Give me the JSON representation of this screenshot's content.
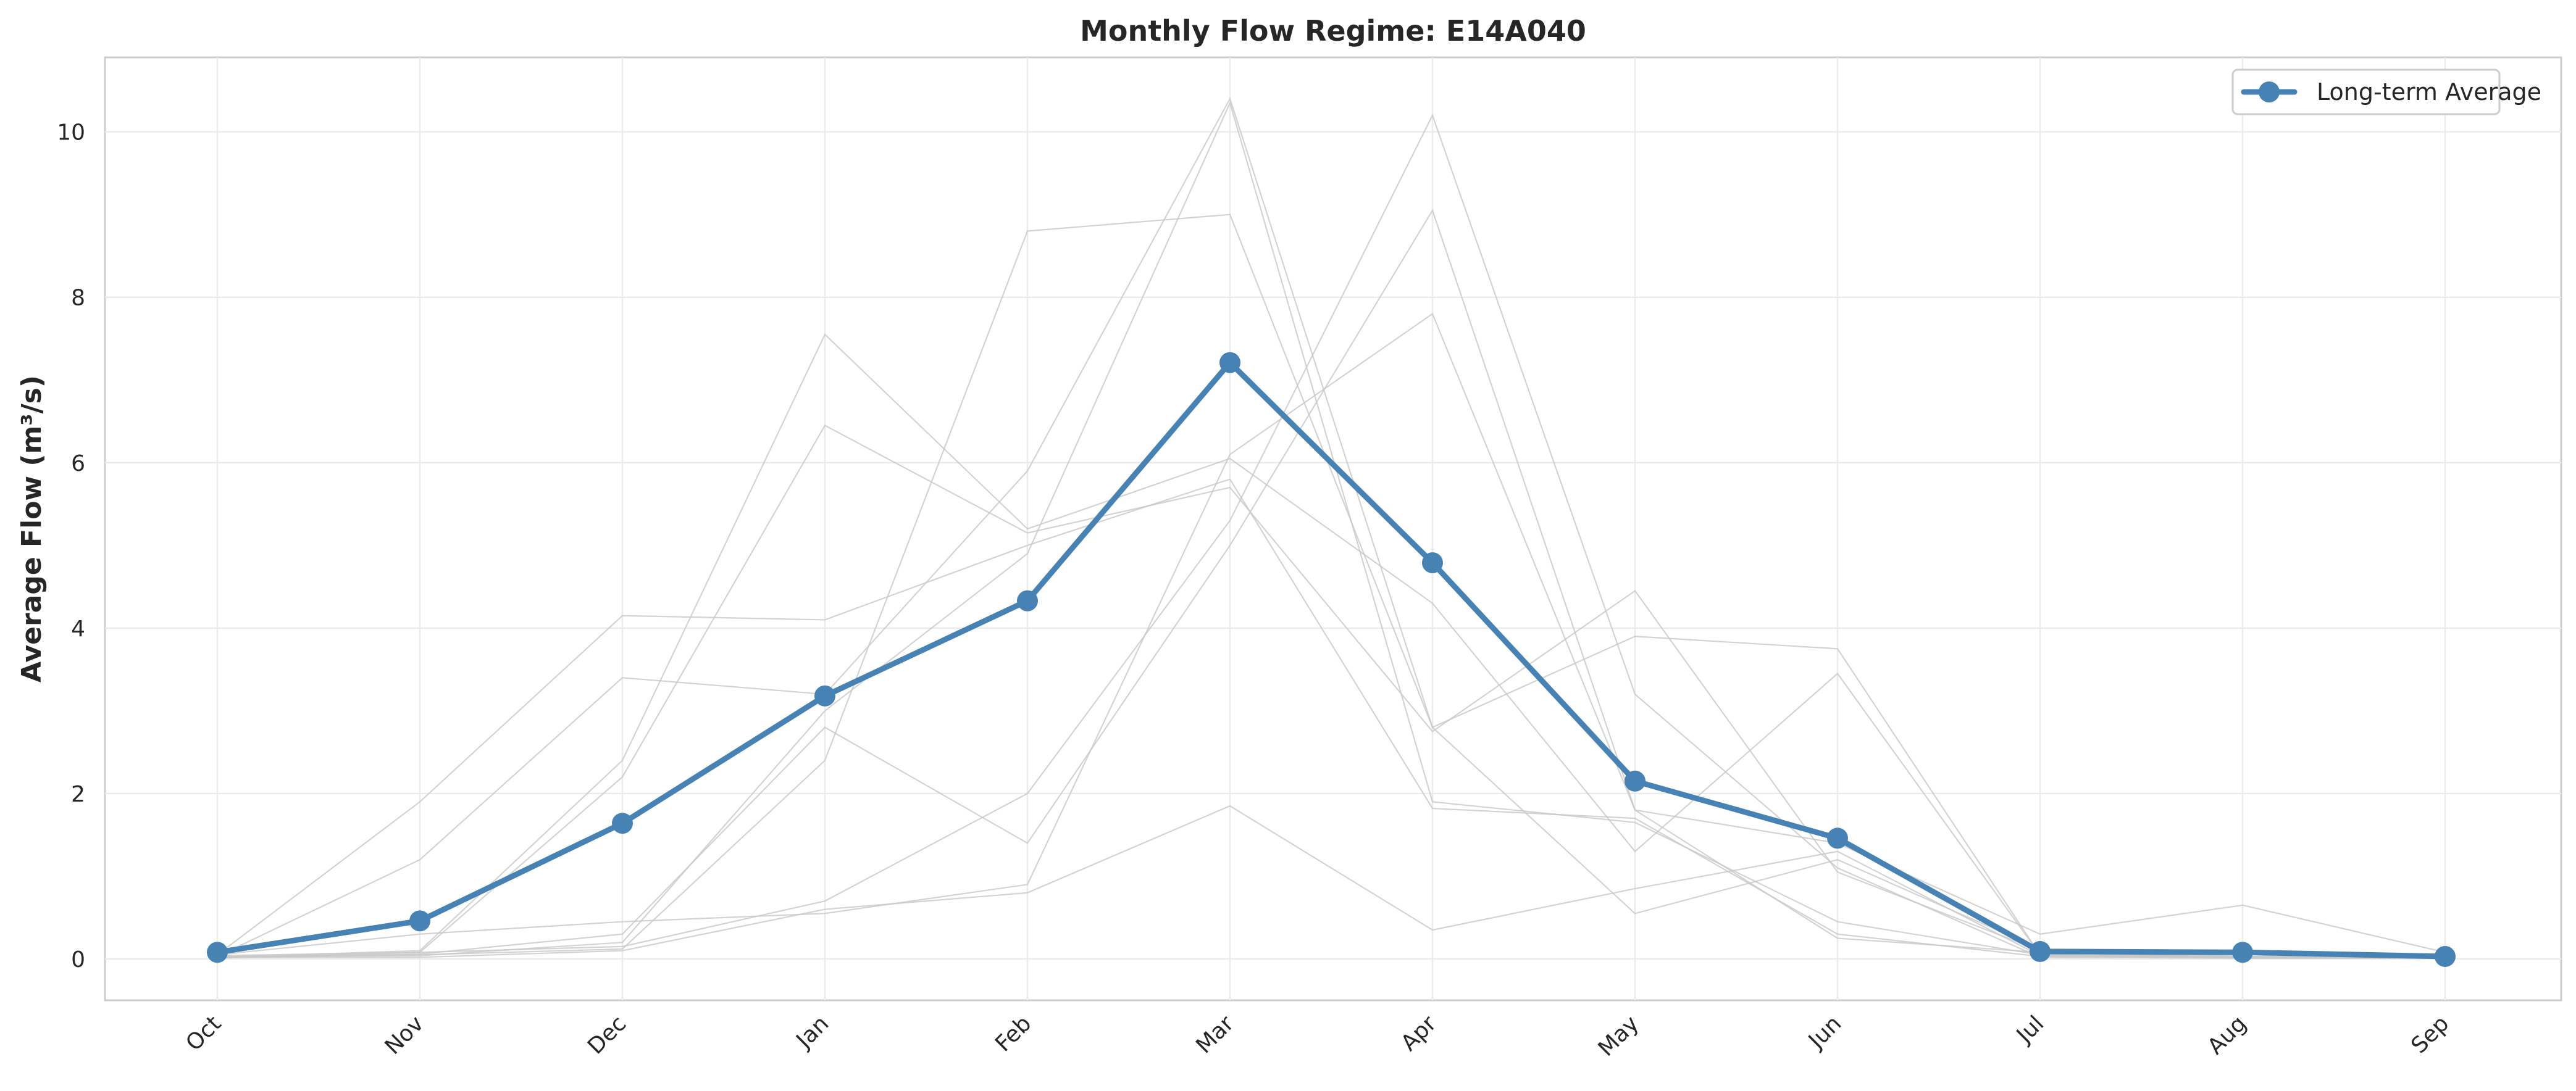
{
  "chart_data": {
    "type": "line",
    "title": "Monthly Flow Regime: E14A040",
    "xlabel": "",
    "ylabel": "Average Flow (m³/s)",
    "categories": [
      "Oct",
      "Nov",
      "Dec",
      "Jan",
      "Feb",
      "Mar",
      "Apr",
      "May",
      "Jun",
      "Jul",
      "Aug",
      "Sep"
    ],
    "ylim": [
      -0.5,
      10.9
    ],
    "yticks": [
      0,
      2,
      4,
      6,
      8,
      10
    ],
    "grid": true,
    "legend_position": "top-right",
    "series": [
      {
        "name": "Long-term Average",
        "color": "#4682b4",
        "values": [
          0.08,
          0.46,
          1.64,
          3.18,
          4.33,
          7.21,
          4.79,
          2.15,
          1.46,
          0.09,
          0.08,
          0.03
        ]
      }
    ],
    "background_lines": {
      "color": "#c8c8c8",
      "values": [
        [
          0.05,
          1.9,
          4.15,
          4.1,
          5.0,
          5.8,
          1.82,
          1.7,
          0.3,
          0.03,
          0.02,
          0.02
        ],
        [
          0.03,
          1.2,
          3.4,
          3.2,
          5.9,
          10.4,
          2.8,
          3.9,
          3.75,
          0.05,
          0.02,
          0.01
        ],
        [
          0.02,
          0.1,
          2.4,
          7.55,
          5.2,
          6.05,
          4.3,
          1.3,
          3.45,
          0.05,
          0.01,
          0.01
        ],
        [
          0.04,
          0.08,
          2.2,
          6.45,
          5.15,
          5.7,
          2.75,
          4.45,
          1.05,
          0.1,
          0.01,
          0.02
        ],
        [
          0.02,
          0.02,
          0.1,
          0.6,
          0.8,
          1.85,
          0.35,
          0.85,
          1.3,
          0.04,
          0.01,
          0.01
        ],
        [
          0.01,
          0.08,
          0.15,
          0.7,
          2.0,
          5.3,
          10.2,
          3.2,
          1.1,
          0.02,
          0.01,
          0.02
        ],
        [
          0.05,
          0.3,
          0.45,
          0.55,
          0.9,
          6.1,
          7.8,
          1.8,
          1.4,
          0.3,
          0.65,
          0.08
        ],
        [
          0.03,
          0.05,
          0.12,
          2.4,
          8.8,
          9.0,
          2.8,
          0.55,
          1.2,
          0.12,
          0.03,
          0.02
        ],
        [
          0.02,
          0.04,
          0.2,
          3.0,
          4.9,
          10.35,
          1.9,
          1.65,
          0.45,
          0.05,
          0.03,
          0.03
        ],
        [
          0.02,
          0.06,
          0.3,
          2.8,
          1.4,
          5.0,
          9.05,
          1.8,
          0.25,
          0.08,
          0.02,
          0.01
        ]
      ]
    }
  }
}
